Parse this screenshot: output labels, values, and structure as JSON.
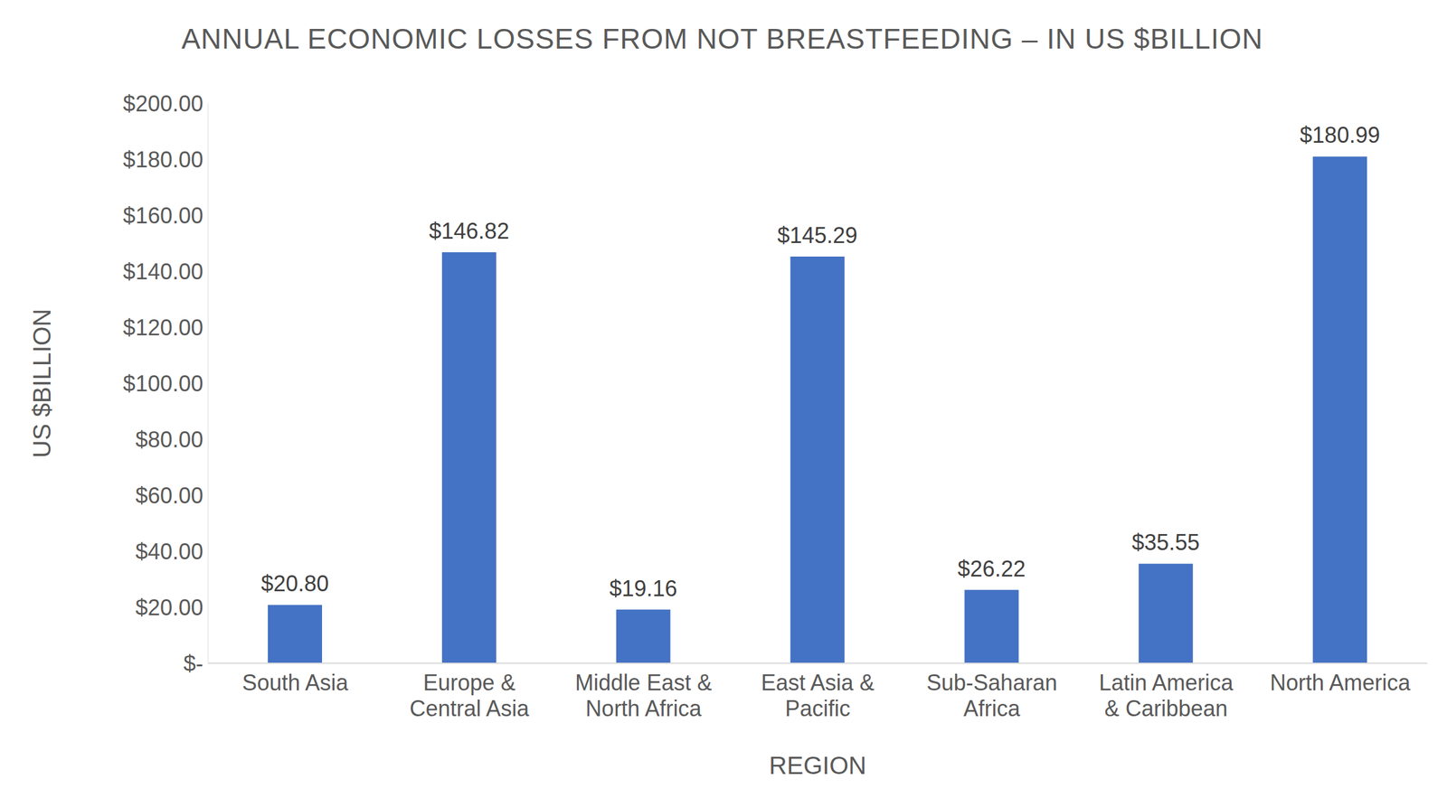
{
  "chart_data": {
    "type": "bar",
    "title": "ANNUAL ECONOMIC LOSSES FROM NOT BREASTFEEDING – IN US $BILLION",
    "x_label": "REGION",
    "y_label": "US $BILLION",
    "categories": [
      "South Asia",
      "Europe & Central Asia",
      "Middle East & North Africa",
      "East Asia & Pacific",
      "Sub-Saharan Africa",
      "Latin America & Caribbean",
      "North America"
    ],
    "values": [
      20.8,
      146.82,
      19.16,
      145.29,
      26.22,
      35.55,
      180.99
    ],
    "value_labels": [
      "$20.80",
      "$146.82",
      "$19.16",
      "$145.29",
      "$26.22",
      "$35.55",
      "$180.99"
    ],
    "color": "#4472c4",
    "ylim": [
      0,
      200
    ],
    "yticks": [
      {
        "value": 0,
        "label": "$-"
      },
      {
        "value": 20,
        "label": "$20.00"
      },
      {
        "value": 40,
        "label": "$40.00"
      },
      {
        "value": 60,
        "label": "$60.00"
      },
      {
        "value": 80,
        "label": "$80.00"
      },
      {
        "value": 100,
        "label": "$100.00"
      },
      {
        "value": 120,
        "label": "$120.00"
      },
      {
        "value": 140,
        "label": "$140.00"
      },
      {
        "value": 160,
        "label": "$160.00"
      },
      {
        "value": 180,
        "label": "$180.00"
      },
      {
        "value": 200,
        "label": "$200.00"
      }
    ],
    "grid": false,
    "data_labels": true
  }
}
